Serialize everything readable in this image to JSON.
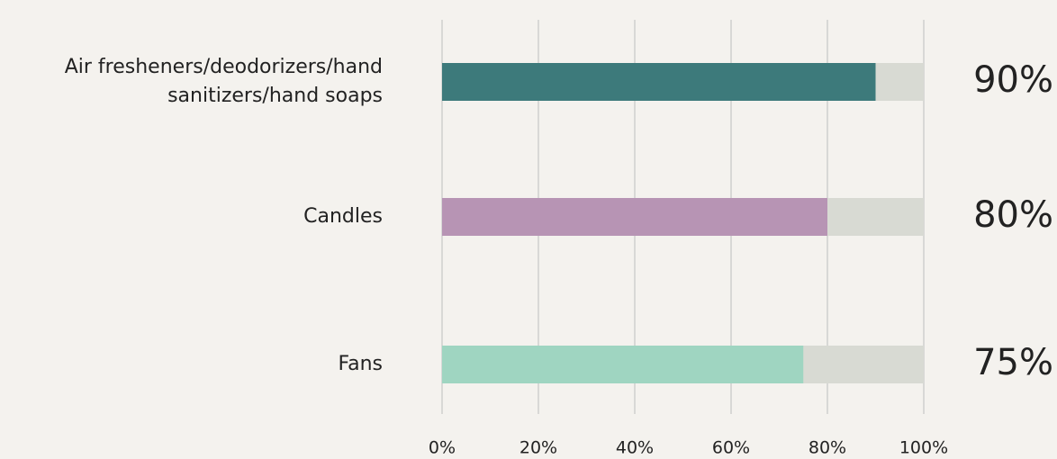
{
  "chart_data": {
    "type": "bar",
    "orientation": "horizontal",
    "categories": [
      "Air fresheners/deodorizers/hand sanitizers/hand soaps",
      "Candles",
      "Fans"
    ],
    "values": [
      90,
      80,
      75
    ],
    "value_labels": [
      "90%",
      "80%",
      "75%"
    ],
    "colors": [
      "#3d7a7b",
      "#b794b4",
      "#9fd5c1"
    ],
    "track_color": "#d8dad3",
    "xlim": [
      0,
      100
    ],
    "xticks": [
      {
        "value": 0,
        "label": "0%"
      },
      {
        "value": 20,
        "label": "20%"
      },
      {
        "value": 40,
        "label": "40%"
      },
      {
        "value": 60,
        "label": "60%"
      },
      {
        "value": 80,
        "label": "80%"
      },
      {
        "value": 100,
        "label": "100%"
      }
    ],
    "grid": true
  }
}
